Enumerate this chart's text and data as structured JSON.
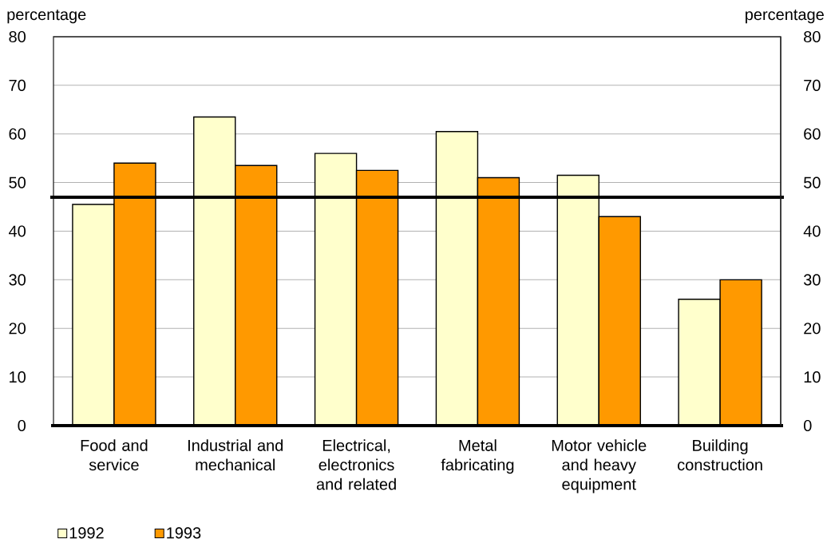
{
  "chart_data": {
    "type": "bar",
    "ylabel": "percentage",
    "y2label": "percentage",
    "categories": [
      "Food and service",
      "Industrial and mechanical",
      "Electrical, electronics and related",
      "Metal fabricating",
      "Motor vehicle and heavy equipment",
      "Building construction"
    ],
    "series": [
      {
        "name": "1992",
        "color": "#ffffcc",
        "values": [
          45.5,
          63.5,
          56,
          60.5,
          51.5,
          26
        ]
      },
      {
        "name": "1993",
        "color": "#ff9900",
        "values": [
          54,
          53.5,
          52.5,
          51,
          43,
          30
        ]
      }
    ],
    "ylim": [
      0,
      80
    ],
    "yticks": [
      0,
      10,
      20,
      30,
      40,
      50,
      60,
      70,
      80
    ],
    "y2lim": [
      0,
      80
    ],
    "y2ticks": [
      0,
      10,
      20,
      30,
      40,
      50,
      60,
      70,
      80
    ],
    "grid": "y",
    "legend": "bottom left",
    "ref_lines": [
      {
        "axis": "y",
        "value": 47,
        "color": "#000000"
      }
    ]
  }
}
